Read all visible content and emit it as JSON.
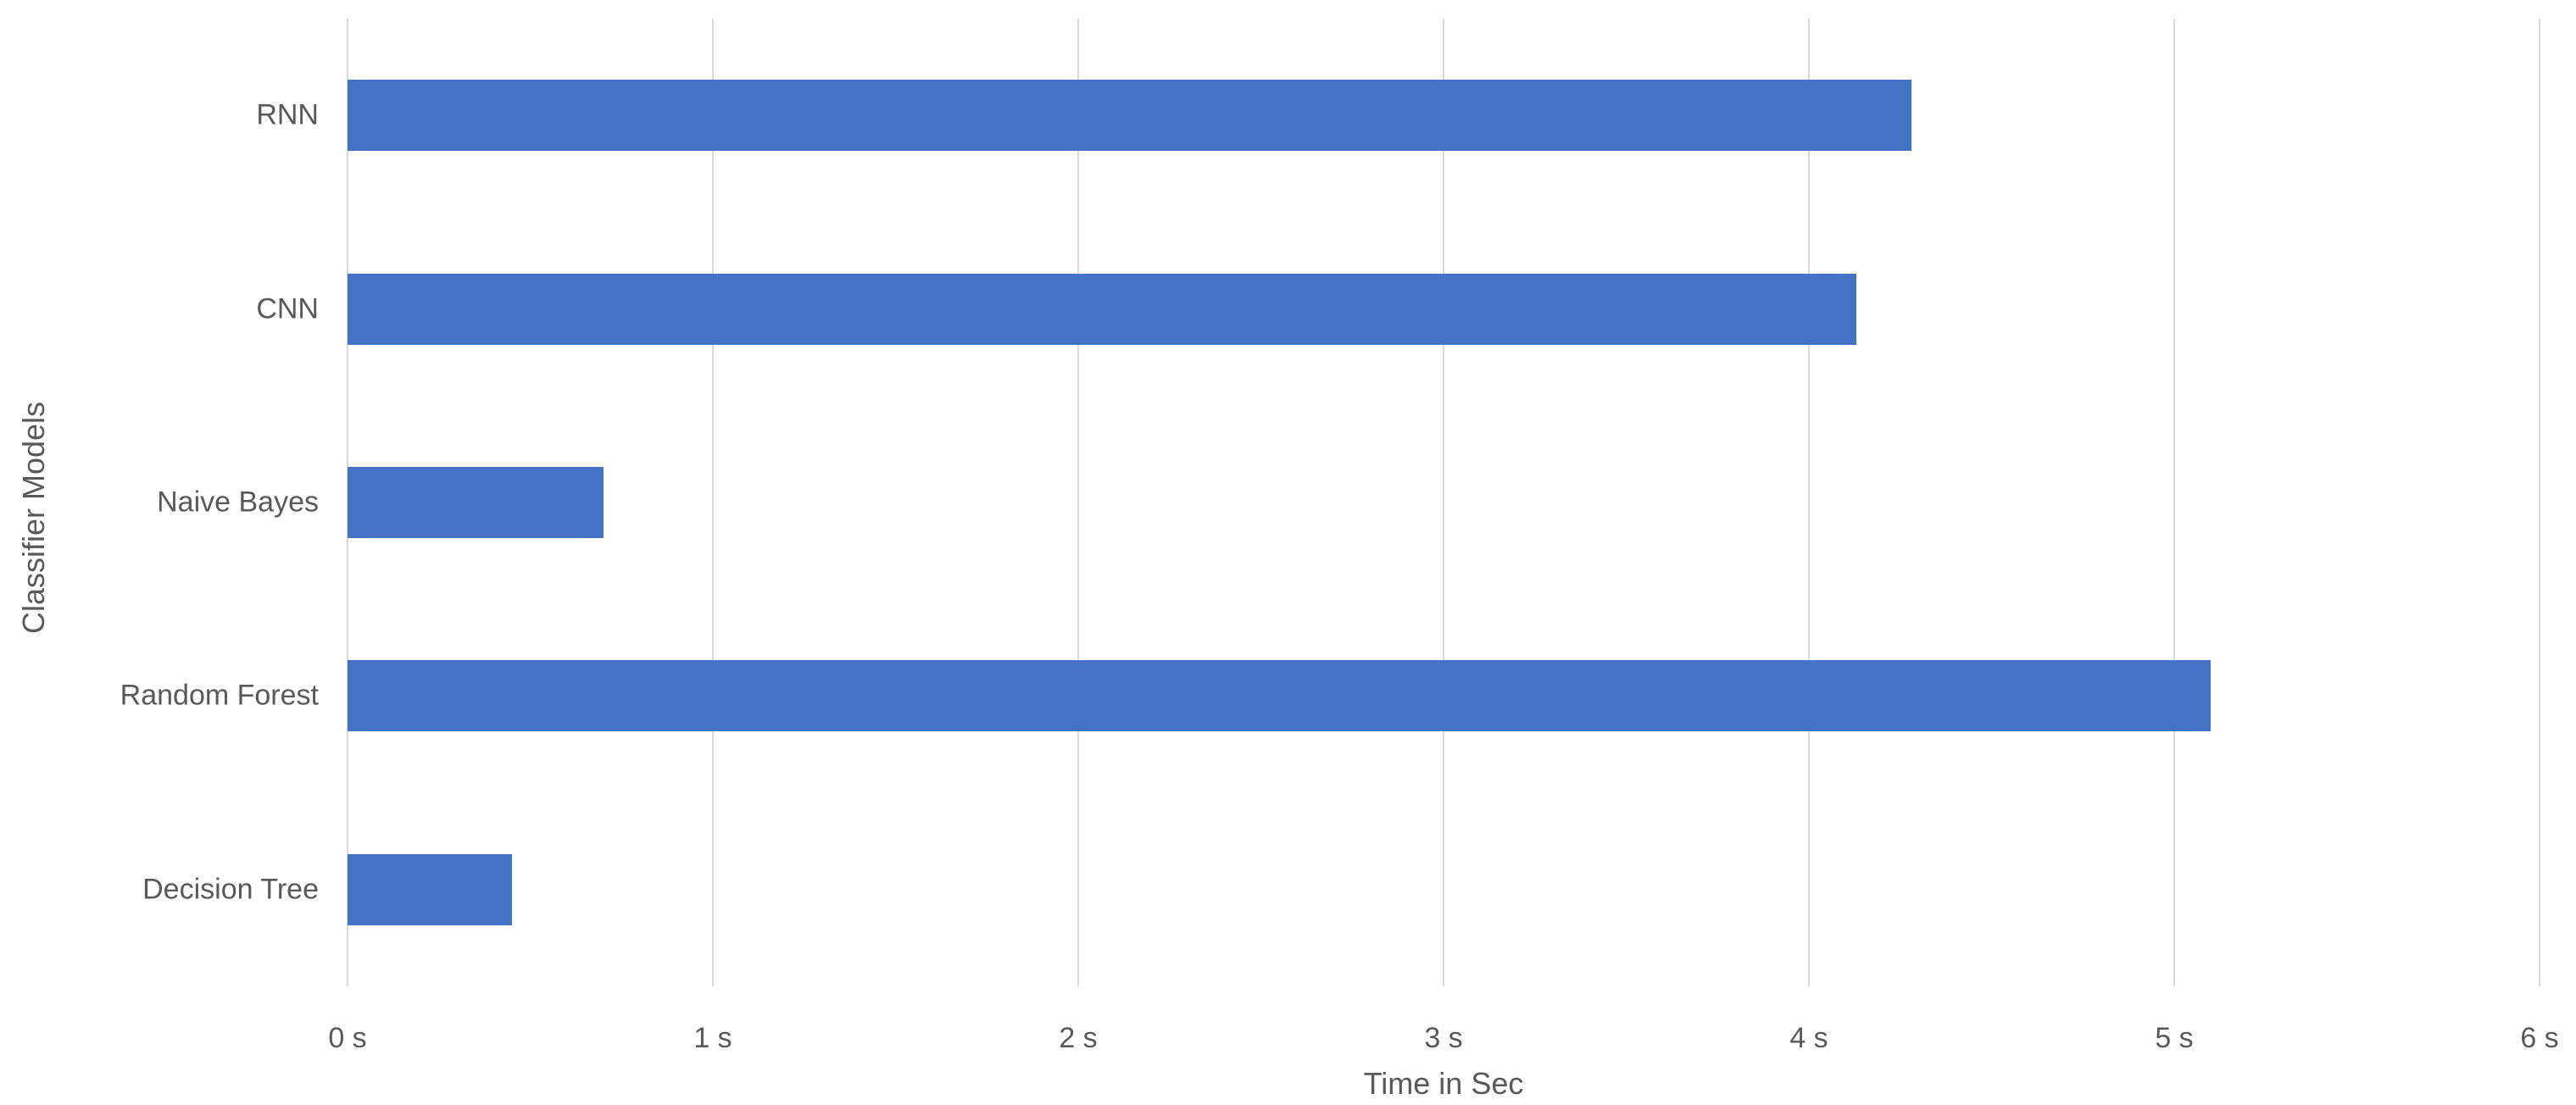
{
  "chart_data": {
    "type": "bar",
    "orientation": "horizontal",
    "title": "",
    "xlabel": "Time in Sec",
    "ylabel": "Classifier Models",
    "categories": [
      "RNN",
      "CNN",
      "Naive Bayes",
      "Random Forest",
      "Decision Tree"
    ],
    "values": [
      4.28,
      4.13,
      0.7,
      5.1,
      0.45
    ],
    "xlim": [
      0,
      6
    ],
    "x_ticks": [
      0,
      1,
      2,
      3,
      4,
      5,
      6
    ],
    "x_tick_labels": [
      "0 s",
      "1 s",
      "2 s",
      "3 s",
      "4 s",
      "5 s",
      "6 s"
    ],
    "bar_color": "#4472c4",
    "gridline_color": "#d9d9d9",
    "text_color": "#595959",
    "grid": true,
    "legend": false
  }
}
